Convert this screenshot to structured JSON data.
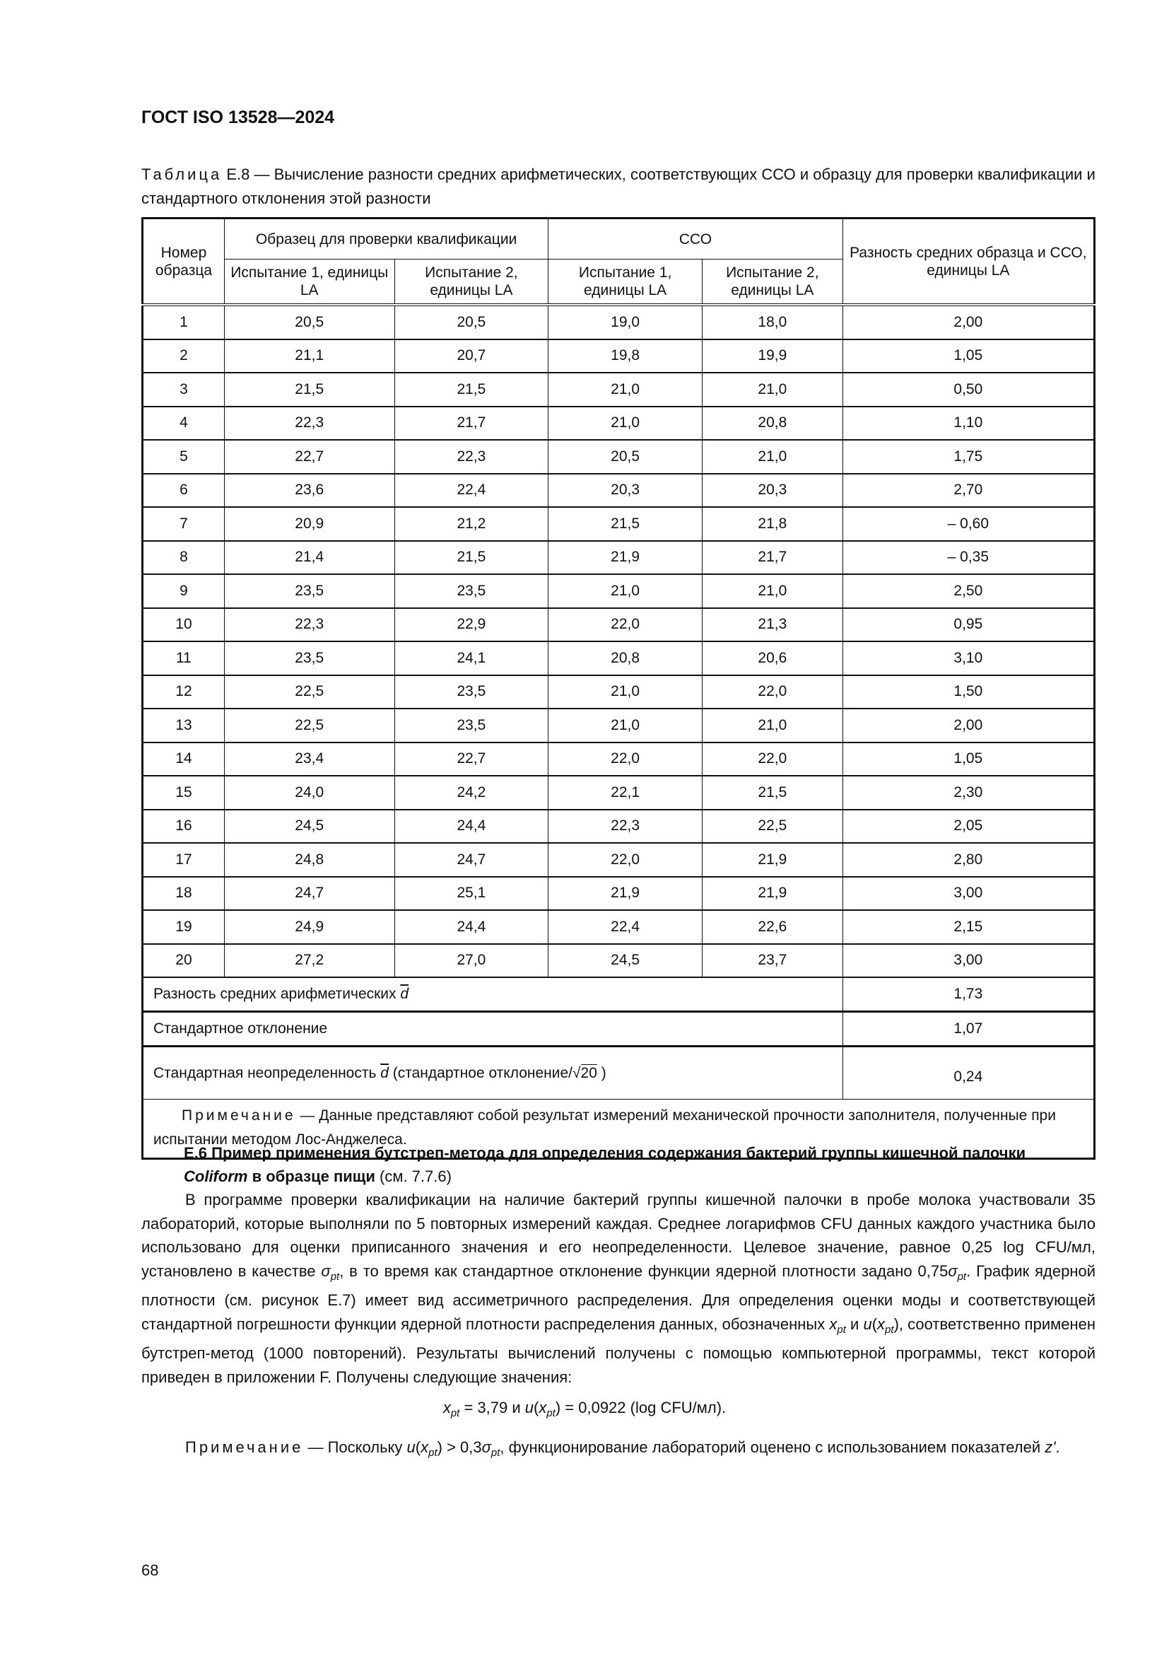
{
  "header": {
    "doc_id": "ГОСТ ISO 13528—2024"
  },
  "table": {
    "caption_label": "Таблица",
    "caption_text": " Е.8 — Вычисление разности средних арифметических, соответствующих ССО и образцу для проверки квалификации и стандартного отклонения этой разности",
    "headers": {
      "sample_no": "Номер образца",
      "pt_item": "Образец для проверки квалификации",
      "cco": "ССО",
      "diff": "Разность средних образца и ССО, единицы LA",
      "test1": "Испытание 1, единицы LA",
      "test2": "Испытание 2, единицы LA"
    },
    "rows": [
      [
        "1",
        "20,5",
        "20,5",
        "19,0",
        "18,0",
        "2,00"
      ],
      [
        "2",
        "21,1",
        "20,7",
        "19,8",
        "19,9",
        "1,05"
      ],
      [
        "3",
        "21,5",
        "21,5",
        "21,0",
        "21,0",
        "0,50"
      ],
      [
        "4",
        "22,3",
        "21,7",
        "21,0",
        "20,8",
        "1,10"
      ],
      [
        "5",
        "22,7",
        "22,3",
        "20,5",
        "21,0",
        "1,75"
      ],
      [
        "6",
        "23,6",
        "22,4",
        "20,3",
        "20,3",
        "2,70"
      ],
      [
        "7",
        "20,9",
        "21,2",
        "21,5",
        "21,8",
        "– 0,60"
      ],
      [
        "8",
        "21,4",
        "21,5",
        "21,9",
        "21,7",
        "– 0,35"
      ],
      [
        "9",
        "23,5",
        "23,5",
        "21,0",
        "21,0",
        "2,50"
      ],
      [
        "10",
        "22,3",
        "22,9",
        "22,0",
        "21,3",
        "0,95"
      ],
      [
        "11",
        "23,5",
        "24,1",
        "20,8",
        "20,6",
        "3,10"
      ],
      [
        "12",
        "22,5",
        "23,5",
        "21,0",
        "22,0",
        "1,50"
      ],
      [
        "13",
        "22,5",
        "23,5",
        "21,0",
        "21,0",
        "2,00"
      ],
      [
        "14",
        "23,4",
        "22,7",
        "22,0",
        "22,0",
        "1,05"
      ],
      [
        "15",
        "24,0",
        "24,2",
        "22,1",
        "21,5",
        "2,30"
      ],
      [
        "16",
        "24,5",
        "24,4",
        "22,3",
        "22,5",
        "2,05"
      ],
      [
        "17",
        "24,8",
        "24,7",
        "22,0",
        "21,9",
        "2,80"
      ],
      [
        "18",
        "24,7",
        "25,1",
        "21,9",
        "21,9",
        "3,00"
      ],
      [
        "19",
        "24,9",
        "24,4",
        "22,4",
        "22,6",
        "2,15"
      ],
      [
        "20",
        "27,2",
        "27,0",
        "24,5",
        "23,7",
        "3,00"
      ]
    ],
    "summary": {
      "mean_label": "Разность средних арифметических ",
      "d_symbol": "d",
      "mean_value": "1,73",
      "sd_label": "Стандартное отклонение",
      "sd_value": "1,07",
      "unc_label": "Стандартная неопределенность ",
      "unc_label_2": " (стандартное отклонение/",
      "sqrt_sign": "√",
      "sqrt_arg": "20",
      "unc_label_3": " )",
      "unc_value": "0,24"
    },
    "note_label": "Примечание",
    "note_text": " — Данные представляют собой результат измерений механической прочности заполнителя, полученные при испытании методом Лос-Анджелеса."
  },
  "section": {
    "title_bold": "Е.6 Пример применения бутстреп-метода для определения содержания бактерий группы кишечной палочки ",
    "title_italic": "Coliform",
    "title_bold_2": " в образце пищи",
    "title_ref": " (см. 7.7.6)",
    "paragraph": [
      {
        "t": "В программе проверки квалификации на наличие бактерий группы кишечной палочки в пробе молока участвовали 35 лабораторий, которые выполняли по 5 повторных измерений каждая. Среднее логарифмов CFU данных каждого участника было использовано для оценки приписанного значения и его неопределенности. Целевое значение, равное 0,25 log CFU/мл, установлено в качестве "
      },
      {
        "i": "σ",
        "sub": "pt"
      },
      {
        "t": ", в то время как стандартное отклонение функции ядерной плотности задано 0,75"
      },
      {
        "i": "σ",
        "sub": "pt"
      },
      {
        "t": ". График ядерной плотности (см. рисунок Е.7) имеет вид ассиметричного распределения. Для определения оценки моды и соответствующей стандартной погрешности функции ядерной плотности распределения данных, обозначенных "
      },
      {
        "i": "x",
        "sub": "pt"
      },
      {
        "t": " и "
      },
      {
        "i": "u"
      },
      {
        "t": "("
      },
      {
        "i": "x",
        "sub": "pt"
      },
      {
        "t": "), соответственно применен бутстреп-метод (1000 повторений). Результаты вычислений получены с помощью компьютерной программы, текст которой приведен в приложении F. Получены следующие значения:"
      }
    ],
    "formula": [
      {
        "i": "x",
        "sub": "pt"
      },
      {
        "t": " = 3,79 и "
      },
      {
        "i": "u"
      },
      {
        "t": "("
      },
      {
        "i": "x",
        "sub": "pt"
      },
      {
        "t": ") = 0,0922 (log CFU/мл)."
      }
    ],
    "note_label": "Примечание",
    "note": [
      {
        "t": " — Поскольку "
      },
      {
        "i": "u"
      },
      {
        "t": "("
      },
      {
        "i": "x",
        "sub": "pt"
      },
      {
        "t": ") > 0,3"
      },
      {
        "i": "σ",
        "sub": "pt"
      },
      {
        "t": ", функционирование лабораторий оценено с использованием показателей "
      },
      {
        "i": "z'"
      },
      {
        "t": "."
      }
    ]
  },
  "footer": {
    "page_number": "68"
  }
}
